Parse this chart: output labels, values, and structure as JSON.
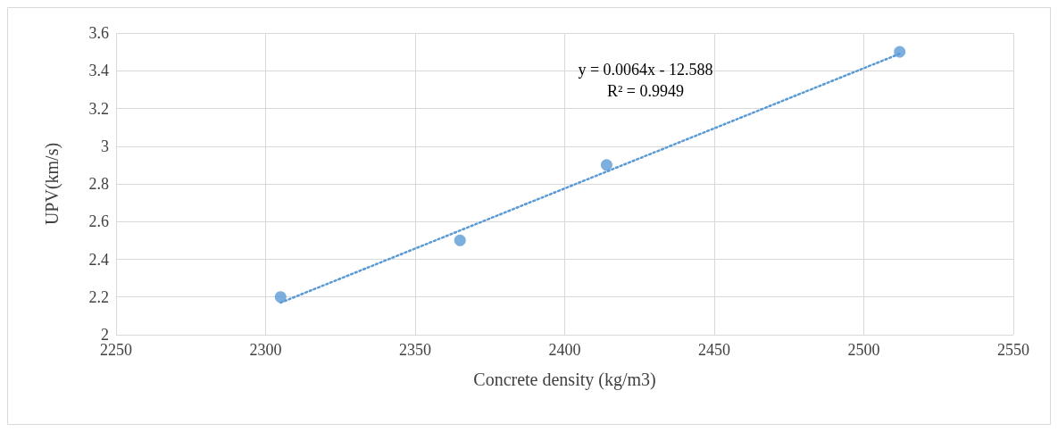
{
  "chart_data": {
    "type": "scatter",
    "xlabel": "Concrete density (kg/m3)",
    "ylabel": "UPV(km/s)",
    "x": [
      2305,
      2365,
      2414,
      2512
    ],
    "series": [
      {
        "color": "#5b9bd5",
        "values": [
          2.2,
          2.5,
          2.9,
          3.5
        ]
      },
      {
        "type": "line",
        "color": "#5b9bd5",
        "x": [
          2305,
          2512
        ],
        "values": [
          2.17,
          3.49
        ],
        "line_style": "dotted",
        "marker": "none"
      }
    ],
    "marker": "circle",
    "annotations": [
      "y = 0.0064x - 12.588\nR² = 0.9949"
    ],
    "xlim": [
      2250,
      2550
    ],
    "xticks": [
      2250,
      2300,
      2350,
      2400,
      2450,
      2500,
      2550
    ],
    "ylim": [
      2,
      3.6
    ],
    "yticks": [
      2,
      2.2,
      2.4,
      2.6,
      2.8,
      3,
      3.2,
      3.4,
      3.6
    ],
    "grid": true
  }
}
